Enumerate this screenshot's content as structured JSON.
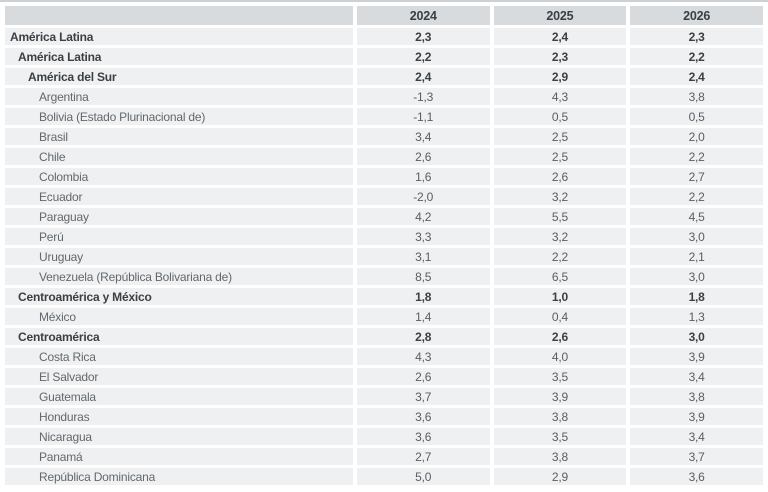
{
  "page": {
    "background": "#ffffff",
    "top_line_color": "#cdd1d3"
  },
  "table": {
    "columns": [
      "",
      "2024",
      "2025",
      "2026"
    ],
    "colors": {
      "header_bg": "#d7dbde",
      "row_bg": "#eef0f2",
      "bold_text": "#3c4043",
      "label_text": "#63686c",
      "value_text": "#595e62"
    },
    "rows": [
      {
        "label": "América Latina",
        "level": 1,
        "bold": true,
        "values": [
          "2,3",
          "2,4",
          "2,3"
        ]
      },
      {
        "label": "América Latina",
        "level": 2,
        "bold": true,
        "values": [
          "2,2",
          "2,3",
          "2,2"
        ]
      },
      {
        "label": "América del Sur",
        "level": 3,
        "bold": true,
        "values": [
          "2,4",
          "2,9",
          "2,4"
        ]
      },
      {
        "label": "Argentina",
        "level": 4,
        "bold": false,
        "values": [
          "-1,3",
          "4,3",
          "3,8"
        ]
      },
      {
        "label": "Bolivia (Estado Plurinacional de)",
        "level": 4,
        "bold": false,
        "values": [
          "-1,1",
          "0,5",
          "0,5"
        ]
      },
      {
        "label": "Brasil",
        "level": 4,
        "bold": false,
        "values": [
          "3,4",
          "2,5",
          "2,0"
        ]
      },
      {
        "label": "Chile",
        "level": 4,
        "bold": false,
        "values": [
          "2,6",
          "2,5",
          "2,2"
        ]
      },
      {
        "label": "Colombia",
        "level": 4,
        "bold": false,
        "values": [
          "1,6",
          "2,6",
          "2,7"
        ]
      },
      {
        "label": "Ecuador",
        "level": 4,
        "bold": false,
        "values": [
          "-2,0",
          "3,2",
          "2,2"
        ]
      },
      {
        "label": "Paraguay",
        "level": 4,
        "bold": false,
        "values": [
          "4,2",
          "5,5",
          "4,5"
        ]
      },
      {
        "label": "Perú",
        "level": 4,
        "bold": false,
        "values": [
          "3,3",
          "3,2",
          "3,0"
        ]
      },
      {
        "label": "Uruguay",
        "level": 4,
        "bold": false,
        "values": [
          "3,1",
          "2,2",
          "2,1"
        ]
      },
      {
        "label": "Venezuela (República Bolivariana de)",
        "level": 4,
        "bold": false,
        "values": [
          "8,5",
          "6,5",
          "3,0"
        ]
      },
      {
        "label": "Centroamérica y México",
        "level": 2,
        "bold": true,
        "values": [
          "1,8",
          "1,0",
          "1,8"
        ]
      },
      {
        "label": "México",
        "level": 4,
        "bold": false,
        "values": [
          "1,4",
          "0,4",
          "1,3"
        ]
      },
      {
        "label": "Centroamérica",
        "level": 2,
        "bold": true,
        "values": [
          "2,8",
          "2,6",
          "3,0"
        ]
      },
      {
        "label": "Costa Rica",
        "level": 4,
        "bold": false,
        "values": [
          "4,3",
          "4,0",
          "3,9"
        ]
      },
      {
        "label": "El Salvador",
        "level": 4,
        "bold": false,
        "values": [
          "2,6",
          "3,5",
          "3,4"
        ]
      },
      {
        "label": "Guatemala",
        "level": 4,
        "bold": false,
        "values": [
          "3,7",
          "3,9",
          "3,8"
        ]
      },
      {
        "label": "Honduras",
        "level": 4,
        "bold": false,
        "values": [
          "3,6",
          "3,8",
          "3,9"
        ]
      },
      {
        "label": "Nicaragua",
        "level": 4,
        "bold": false,
        "values": [
          "3,6",
          "3,5",
          "3,4"
        ]
      },
      {
        "label": "Panamá",
        "level": 4,
        "bold": false,
        "values": [
          "2,7",
          "3,8",
          "3,7"
        ]
      },
      {
        "label": "República Dominicana",
        "level": 4,
        "bold": false,
        "values": [
          "5,0",
          "2,9",
          "3,6"
        ]
      }
    ]
  }
}
